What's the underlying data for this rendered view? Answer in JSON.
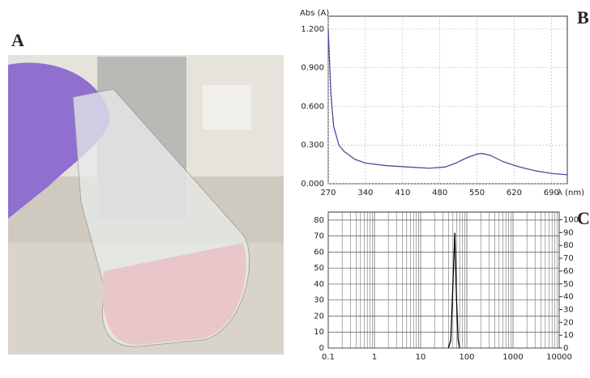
{
  "panel_labels": [
    "A",
    "B",
    "C"
  ],
  "chart_data": [
    {
      "type": "line",
      "y_label": "Abs (A)",
      "x_label": "λ (nm)",
      "x": [
        270,
        275,
        280,
        290,
        300,
        320,
        340,
        380,
        420,
        460,
        490,
        510,
        530,
        550,
        560,
        575,
        600,
        630,
        660,
        690,
        720
      ],
      "series": [
        {
          "color": "#4a4aa8",
          "values": [
            1.2,
            0.7,
            0.45,
            0.3,
            0.25,
            0.19,
            0.16,
            0.14,
            0.13,
            0.12,
            0.13,
            0.16,
            0.2,
            0.23,
            0.235,
            0.22,
            0.17,
            0.13,
            0.1,
            0.08,
            0.07
          ]
        }
      ],
      "xlim": [
        270,
        720
      ],
      "xticks": [
        270,
        340,
        410,
        480,
        550,
        620,
        690
      ],
      "ylim": [
        0,
        1.3
      ],
      "yticks": [
        {
          "value": 0,
          "label": "0.000"
        },
        {
          "value": 0.3,
          "label": "0.300"
        },
        {
          "value": 0.6,
          "label": "0.600"
        },
        {
          "value": 0.9,
          "label": "0.900"
        },
        {
          "value": 1.2,
          "label": "1.200"
        }
      ],
      "grid": true
    },
    {
      "type": "line",
      "xscale": "log",
      "x": [
        40,
        45,
        50,
        55,
        60,
        65,
        70
      ],
      "series": [
        {
          "color": "#000000",
          "values": [
            0,
            5,
            40,
            72,
            30,
            5,
            0
          ]
        }
      ],
      "xlim": [
        0.1,
        10000
      ],
      "xticks": [
        0.1,
        1,
        10,
        100,
        1000,
        10000
      ],
      "ylim": [
        0,
        85
      ],
      "yticks": [
        0,
        10,
        20,
        30,
        40,
        50,
        60,
        70,
        80
      ],
      "y2lim": [
        0,
        106
      ],
      "y2ticks": [
        0,
        10,
        20,
        30,
        40,
        50,
        60,
        70,
        80,
        90,
        100
      ],
      "grid": true
    }
  ]
}
